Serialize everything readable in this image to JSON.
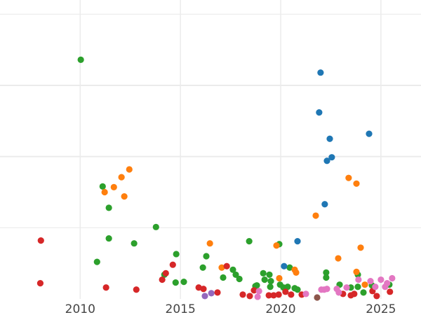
{
  "chart_data": {
    "type": "scatter",
    "title": "",
    "xlabel": "",
    "ylabel": "",
    "xlim": [
      2006,
      2027
    ],
    "ylim": [
      0,
      4.2
    ],
    "grid": true,
    "legend": "none",
    "x_ticks": [
      2010,
      2015,
      2020,
      2025
    ],
    "x_tick_labels": [
      "2010",
      "2015",
      "2020",
      "2025"
    ],
    "y_gridlines": [
      1,
      2,
      3,
      4
    ],
    "series": [
      {
        "color": "#2ca02c",
        "points": [
          [
            2010.03,
            3.36
          ],
          [
            2011.12,
            1.58
          ],
          [
            2011.43,
            1.28
          ],
          [
            2011.43,
            0.85
          ],
          [
            2010.84,
            0.52
          ],
          [
            2012.69,
            0.78
          ],
          [
            2013.78,
            1.01
          ],
          [
            2014.79,
            0.63
          ],
          [
            2014.76,
            0.23
          ],
          [
            2015.17,
            0.24
          ],
          [
            2014.2,
            0.34
          ],
          [
            2016.29,
            0.6
          ],
          [
            2016.12,
            0.44
          ],
          [
            2017.13,
            0.3
          ],
          [
            2017.62,
            0.41
          ],
          [
            2017.76,
            0.34
          ],
          [
            2017.94,
            0.28
          ],
          [
            2018.43,
            0.81
          ],
          [
            2018.74,
            0.18
          ],
          [
            2018.81,
            0.19
          ],
          [
            2019.13,
            0.36
          ],
          [
            2019.2,
            0.27
          ],
          [
            2019.44,
            0.34
          ],
          [
            2019.48,
            0.17
          ],
          [
            2019.51,
            0.25
          ],
          [
            2019.93,
            0.77
          ],
          [
            2019.97,
            0.2
          ],
          [
            2020.14,
            0.16
          ],
          [
            2020.35,
            0.17
          ],
          [
            2020.45,
            0.44
          ],
          [
            2020.7,
            0.15
          ],
          [
            2020.84,
            0.13
          ],
          [
            2022.27,
            0.37
          ],
          [
            2022.27,
            0.3
          ],
          [
            2022.94,
            0.2
          ],
          [
            2023.5,
            0.16
          ],
          [
            2023.85,
            0.34
          ],
          [
            2023.85,
            0.17
          ],
          [
            2024.13,
            0.09
          ],
          [
            2024.55,
            0.19
          ],
          [
            2025.42,
            0.2
          ]
        ]
      },
      {
        "color": "#ff7f0e",
        "points": [
          [
            2011.22,
            1.5
          ],
          [
            2011.68,
            1.57
          ],
          [
            2012.06,
            1.71
          ],
          [
            2012.2,
            1.44
          ],
          [
            2012.45,
            1.82
          ],
          [
            2016.47,
            0.78
          ],
          [
            2017.06,
            0.44
          ],
          [
            2019.79,
            0.75
          ],
          [
            2019.93,
            0.29
          ],
          [
            2020.7,
            0.41
          ],
          [
            2020.77,
            0.37
          ],
          [
            2021.75,
            1.17
          ],
          [
            2022.87,
            0.57
          ],
          [
            2023.39,
            1.7
          ],
          [
            2023.78,
            1.62
          ],
          [
            2023.99,
            0.72
          ],
          [
            2023.78,
            0.38
          ],
          [
            2024.2,
            0.2
          ]
        ]
      },
      {
        "color": "#d62728",
        "points": [
          [
            2008.04,
            0.82
          ],
          [
            2008.01,
            0.22
          ],
          [
            2011.29,
            0.16
          ],
          [
            2012.8,
            0.13
          ],
          [
            2014.09,
            0.27
          ],
          [
            2014.27,
            0.36
          ],
          [
            2014.62,
            0.48
          ],
          [
            2015.91,
            0.16
          ],
          [
            2016.15,
            0.14
          ],
          [
            2016.85,
            0.09
          ],
          [
            2017.31,
            0.46
          ],
          [
            2018.11,
            0.06
          ],
          [
            2018.46,
            0.04
          ],
          [
            2018.67,
            0.12
          ],
          [
            2019.41,
            0.05
          ],
          [
            2019.65,
            0.05
          ],
          [
            2019.9,
            0.06
          ],
          [
            2020.24,
            0.1
          ],
          [
            2020.52,
            0.06
          ],
          [
            2021.05,
            0.06
          ],
          [
            2023.11,
            0.07
          ],
          [
            2023.5,
            0.05
          ],
          [
            2023.67,
            0.07
          ],
          [
            2024.58,
            0.11
          ],
          [
            2024.79,
            0.04
          ],
          [
            2025.45,
            0.1
          ]
        ]
      },
      {
        "color": "#1f77b4",
        "points": [
          [
            2021.99,
            3.18
          ],
          [
            2021.92,
            2.62
          ],
          [
            2022.45,
            2.25
          ],
          [
            2024.41,
            2.32
          ],
          [
            2022.55,
            1.99
          ],
          [
            2022.31,
            1.94
          ],
          [
            2022.2,
            1.33
          ],
          [
            2020.84,
            0.81
          ],
          [
            2020.17,
            0.46
          ]
        ]
      },
      {
        "color": "#9467bd",
        "points": [
          [
            2016.22,
            0.04
          ],
          [
            2016.54,
            0.08
          ]
        ]
      },
      {
        "color": "#e377c2",
        "points": [
          [
            2018.85,
            0.03
          ],
          [
            2018.92,
            0.11
          ],
          [
            2021.26,
            0.07
          ],
          [
            2022.03,
            0.13
          ],
          [
            2022.17,
            0.13
          ],
          [
            2022.31,
            0.14
          ],
          [
            2022.8,
            0.14
          ],
          [
            2023.29,
            0.16
          ],
          [
            2023.88,
            0.27
          ],
          [
            2024.48,
            0.25
          ],
          [
            2024.72,
            0.17
          ],
          [
            2025.0,
            0.27
          ],
          [
            2025.21,
            0.17
          ],
          [
            2025.31,
            0.22
          ],
          [
            2025.56,
            0.29
          ],
          [
            2022.9,
            0.09
          ]
        ]
      },
      {
        "color": "#8c564b",
        "points": [
          [
            2021.82,
            0.02
          ]
        ]
      }
    ]
  }
}
